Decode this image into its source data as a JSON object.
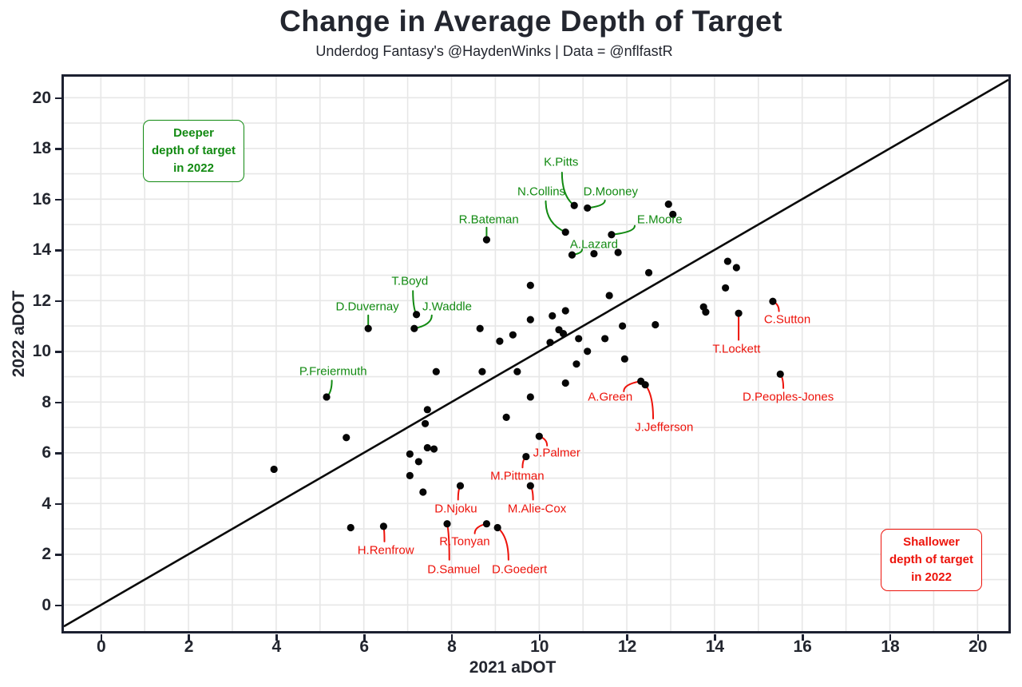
{
  "chart_data": {
    "type": "scatter",
    "title": "Change in Average Depth of Target",
    "subtitle": "Underdog Fantasy's @HaydenWinks | Data = @nflfastR",
    "xlabel": "2021 aDOT",
    "ylabel": "2022 aDOT",
    "xlim": [
      -0.85,
      20.7
    ],
    "ylim": [
      -1.0,
      20.8
    ],
    "x_ticks": [
      0,
      2,
      4,
      6,
      8,
      10,
      12,
      14,
      16,
      18,
      20
    ],
    "y_ticks": [
      0,
      2,
      4,
      6,
      8,
      10,
      12,
      14,
      16,
      18,
      20
    ],
    "grid": true,
    "identity_line": true,
    "legend_position": "none",
    "colors": {
      "deeper_green": "#128a12",
      "shallower_red": "#ed130b",
      "dot": "#060606",
      "identity_line": "#0a0a0a",
      "grid_line": "#e7e7e7",
      "text_dark": "#23262f",
      "panel_border": "#1c2030"
    },
    "notes": {
      "deeper": [
        "Deeper",
        "depth of target",
        "in 2022"
      ],
      "shallower": [
        "Shallower",
        "depth of target",
        "in 2022"
      ]
    },
    "labeled_points": [
      {
        "label": "K.Pitts",
        "group": "deeper",
        "x": 10.8,
        "y": 15.75,
        "tx": 10.5,
        "ty": 17.45,
        "ax": 10.52,
        "ay": 17.05
      },
      {
        "label": "N.Collins",
        "group": "deeper",
        "x": 10.6,
        "y": 14.7,
        "tx": 10.05,
        "ty": 16.3,
        "ax": 10.15,
        "ay": 15.92
      },
      {
        "label": "D.Mooney",
        "group": "deeper",
        "x": 11.1,
        "y": 15.65,
        "tx": 11.63,
        "ty": 16.3,
        "ax": 11.5,
        "ay": 15.95
      },
      {
        "label": "E.Moore",
        "group": "deeper",
        "x": 11.65,
        "y": 14.6,
        "tx": 12.75,
        "ty": 15.2,
        "ax": 12.18,
        "ay": 14.95
      },
      {
        "label": "R.Bateman",
        "group": "deeper",
        "x": 8.8,
        "y": 14.4,
        "tx": 8.85,
        "ty": 15.2,
        "ax": 8.8,
        "ay": 14.88
      },
      {
        "label": "A.Lazard",
        "group": "deeper",
        "x": 10.75,
        "y": 13.8,
        "tx": 11.25,
        "ty": 14.2,
        "ax": 10.98,
        "ay": 14.02
      },
      {
        "label": "T.Boyd",
        "group": "deeper",
        "x": 7.2,
        "y": 11.45,
        "tx": 7.05,
        "ty": 12.75,
        "ax": 7.12,
        "ay": 12.38
      },
      {
        "label": "J.Waddle",
        "group": "deeper",
        "x": 7.15,
        "y": 10.9,
        "tx": 7.9,
        "ty": 11.75,
        "ax": 7.55,
        "ay": 11.42
      },
      {
        "label": "D.Duvernay",
        "group": "deeper",
        "x": 6.1,
        "y": 10.9,
        "tx": 6.08,
        "ty": 11.75,
        "ax": 6.1,
        "ay": 11.42
      },
      {
        "label": "P.Freiermuth",
        "group": "deeper",
        "x": 5.15,
        "y": 8.2,
        "tx": 5.3,
        "ty": 9.2,
        "ax": 5.27,
        "ay": 8.85
      },
      {
        "label": "C.Sutton",
        "group": "shallower",
        "x": 15.33,
        "y": 11.97,
        "tx": 15.66,
        "ty": 11.25,
        "ax": 15.47,
        "ay": 11.58
      },
      {
        "label": "T.Lockett",
        "group": "shallower",
        "x": 14.55,
        "y": 11.5,
        "tx": 14.5,
        "ty": 10.1,
        "ax": 14.55,
        "ay": 10.45
      },
      {
        "label": "D.Peoples-Jones",
        "group": "shallower",
        "x": 15.5,
        "y": 9.1,
        "tx": 15.68,
        "ty": 8.2,
        "ax": 15.57,
        "ay": 8.55
      },
      {
        "label": "A.Green",
        "group": "shallower",
        "x": 12.32,
        "y": 8.82,
        "tx": 11.62,
        "ty": 8.2,
        "ax": 11.93,
        "ay": 8.42
      },
      {
        "label": "J.Jefferson",
        "group": "shallower",
        "x": 12.42,
        "y": 8.68,
        "tx": 12.85,
        "ty": 7.0,
        "ax": 12.6,
        "ay": 7.35
      },
      {
        "label": "J.Palmer",
        "group": "shallower",
        "x": 10.0,
        "y": 6.65,
        "tx": 10.4,
        "ty": 6.0,
        "ax": 10.18,
        "ay": 6.28
      },
      {
        "label": "M.Pittman",
        "group": "shallower",
        "x": 9.7,
        "y": 5.85,
        "tx": 9.5,
        "ty": 5.08,
        "ax": 9.62,
        "ay": 5.42
      },
      {
        "label": "M.Alie-Cox",
        "group": "shallower",
        "x": 9.8,
        "y": 4.7,
        "tx": 9.95,
        "ty": 3.8,
        "ax": 9.86,
        "ay": 4.15
      },
      {
        "label": "D.Njoku",
        "group": "shallower",
        "x": 8.2,
        "y": 4.7,
        "tx": 8.1,
        "ty": 3.8,
        "ax": 8.15,
        "ay": 4.15
      },
      {
        "label": "R.Tonyan",
        "group": "shallower",
        "x": 8.8,
        "y": 3.2,
        "tx": 8.3,
        "ty": 2.5,
        "ax": 8.53,
        "ay": 2.82
      },
      {
        "label": "D.Goedert",
        "group": "shallower",
        "x": 9.05,
        "y": 3.05,
        "tx": 9.55,
        "ty": 1.4,
        "ax": 9.3,
        "ay": 1.78
      },
      {
        "label": "D.Samuel",
        "group": "shallower",
        "x": 7.9,
        "y": 3.2,
        "tx": 8.05,
        "ty": 1.4,
        "ax": 7.95,
        "ay": 1.78
      },
      {
        "label": "H.Renfrow",
        "group": "shallower",
        "x": 6.45,
        "y": 3.1,
        "tx": 6.5,
        "ty": 2.15,
        "ax": 6.47,
        "ay": 2.5
      }
    ],
    "unlabeled_points": [
      [
        12.95,
        15.8
      ],
      [
        13.05,
        15.4
      ],
      [
        11.25,
        13.85
      ],
      [
        11.8,
        13.9
      ],
      [
        9.8,
        12.6
      ],
      [
        14.3,
        13.55
      ],
      [
        14.5,
        13.3
      ],
      [
        12.5,
        13.1
      ],
      [
        11.6,
        12.2
      ],
      [
        14.25,
        12.5
      ],
      [
        13.75,
        11.75
      ],
      [
        13.8,
        11.55
      ],
      [
        11.9,
        11.0
      ],
      [
        12.65,
        11.05
      ],
      [
        11.5,
        10.5
      ],
      [
        11.95,
        9.7
      ],
      [
        8.65,
        10.9
      ],
      [
        9.1,
        10.4
      ],
      [
        9.4,
        10.65
      ],
      [
        9.8,
        11.25
      ],
      [
        10.3,
        11.4
      ],
      [
        10.6,
        11.6
      ],
      [
        10.45,
        10.85
      ],
      [
        10.55,
        10.7
      ],
      [
        10.9,
        10.5
      ],
      [
        10.25,
        10.35
      ],
      [
        11.1,
        10.0
      ],
      [
        10.85,
        9.5
      ],
      [
        7.65,
        9.2
      ],
      [
        8.7,
        9.2
      ],
      [
        9.5,
        9.2
      ],
      [
        10.6,
        8.75
      ],
      [
        9.8,
        8.2
      ],
      [
        7.45,
        7.7
      ],
      [
        7.4,
        7.15
      ],
      [
        9.25,
        7.4
      ],
      [
        5.6,
        6.6
      ],
      [
        3.95,
        5.35
      ],
      [
        7.05,
        5.95
      ],
      [
        7.45,
        6.2
      ],
      [
        7.6,
        6.15
      ],
      [
        7.25,
        5.65
      ],
      [
        7.05,
        5.1
      ],
      [
        7.35,
        4.45
      ],
      [
        5.7,
        3.05
      ]
    ]
  }
}
